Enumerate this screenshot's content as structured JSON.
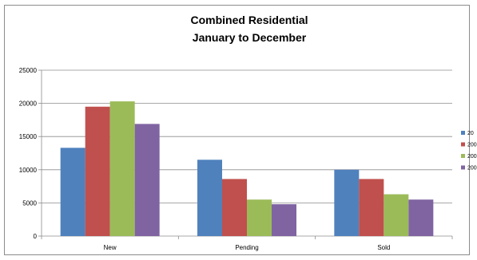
{
  "chart_data": {
    "type": "bar",
    "title": [
      "Combined Residential",
      "January to December"
    ],
    "categories": [
      "New",
      "Pending",
      "Sold"
    ],
    "ylim": [
      0,
      25000
    ],
    "yticks": [
      0,
      5000,
      10000,
      15000,
      20000,
      25000
    ],
    "grid": true,
    "legend_position": "right",
    "series": [
      {
        "name": "20",
        "color": "#4f81bd",
        "values": [
          13300,
          11500,
          10000
        ]
      },
      {
        "name": "200",
        "color": "#c0504d",
        "values": [
          19500,
          8600,
          8600
        ]
      },
      {
        "name": "200",
        "color": "#9bbb59",
        "values": [
          20300,
          5500,
          6300
        ]
      },
      {
        "name": "200",
        "color": "#8064a2",
        "values": [
          16900,
          4800,
          5500
        ]
      }
    ]
  }
}
